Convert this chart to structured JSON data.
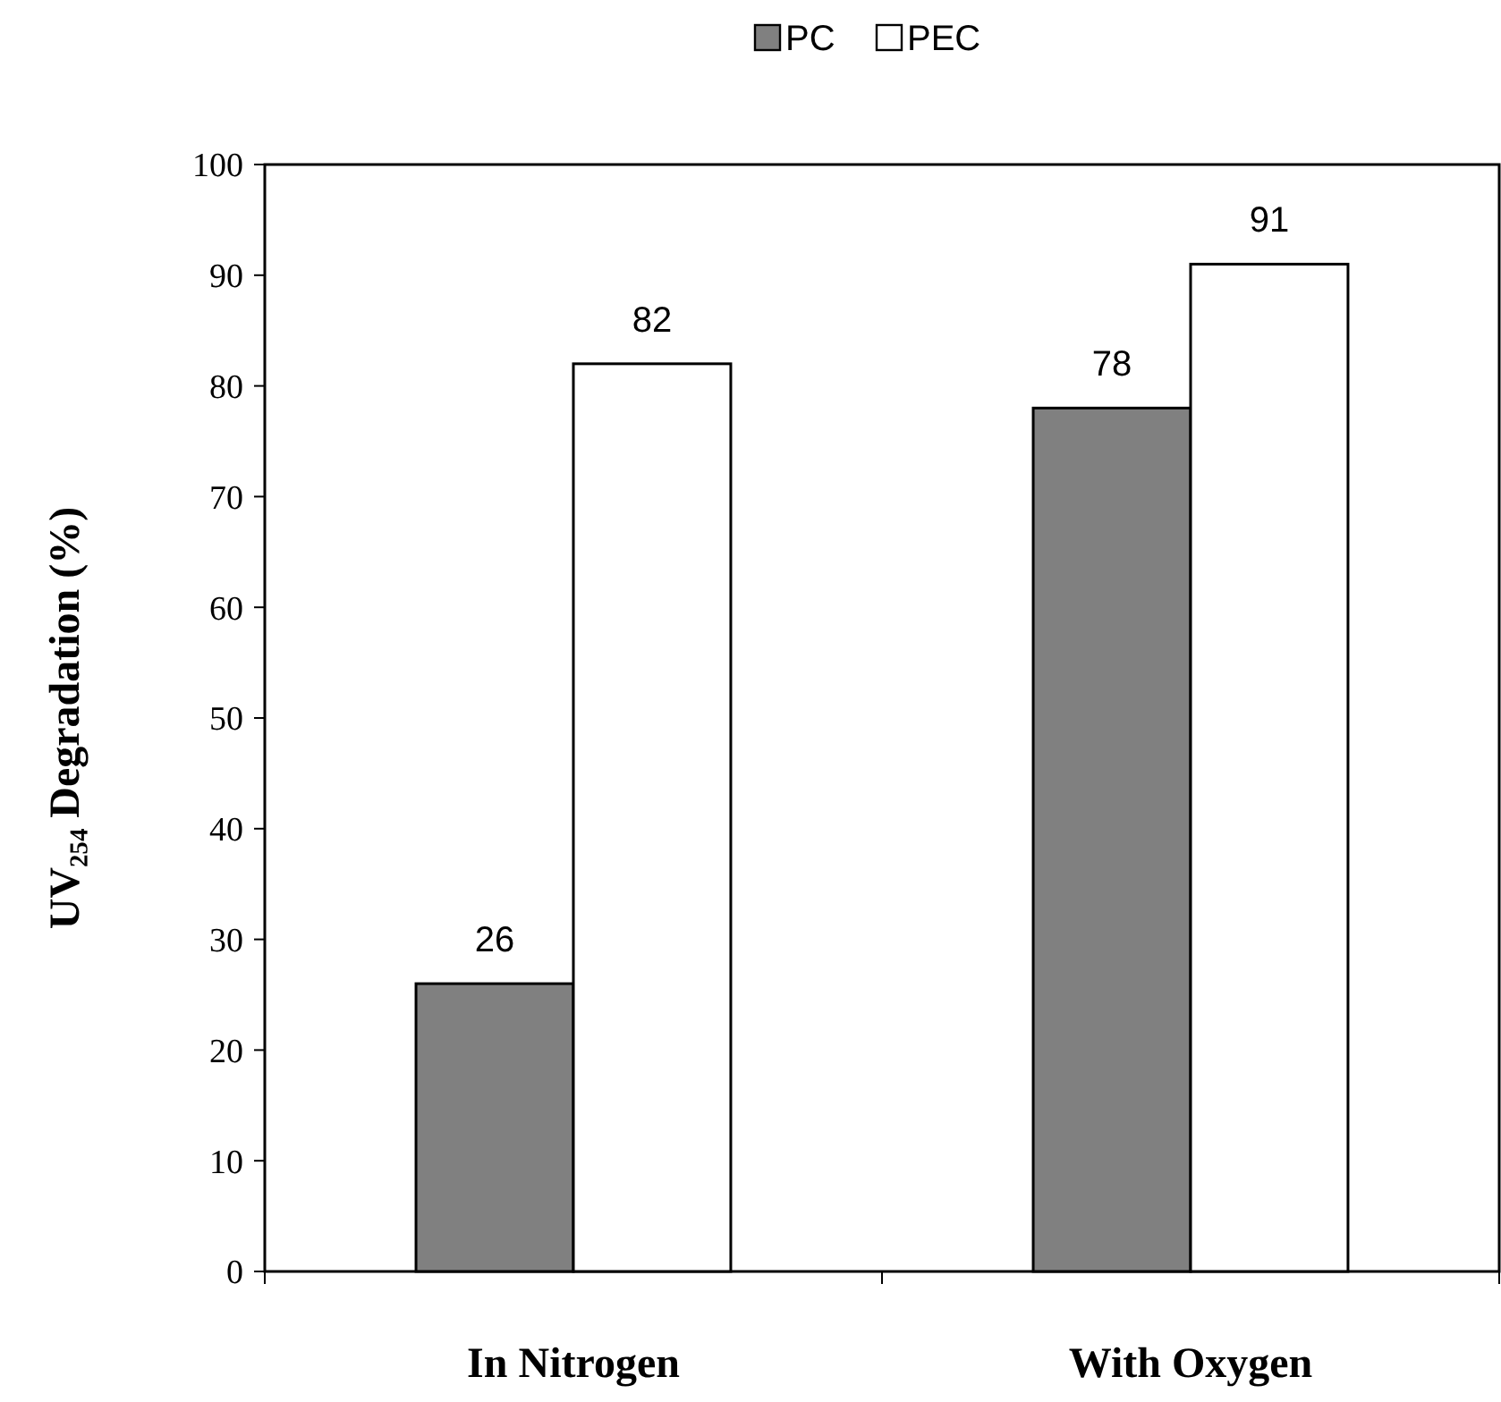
{
  "chart_data": {
    "type": "bar",
    "ylabel": "UV₂₅₄ Degradation (%)",
    "categories": [
      "In Nitrogen",
      "With Oxygen"
    ],
    "series": [
      {
        "name": "PC",
        "color": "#808080",
        "values": [
          26,
          78
        ]
      },
      {
        "name": "PEC",
        "color": "#ffffff",
        "values": [
          82,
          91
        ]
      }
    ],
    "ylim": [
      0,
      100
    ],
    "yticks": [
      0,
      10,
      20,
      30,
      40,
      50,
      60,
      70,
      80,
      90,
      100
    ],
    "data_labels": true,
    "legend": "top",
    "grid": false
  }
}
